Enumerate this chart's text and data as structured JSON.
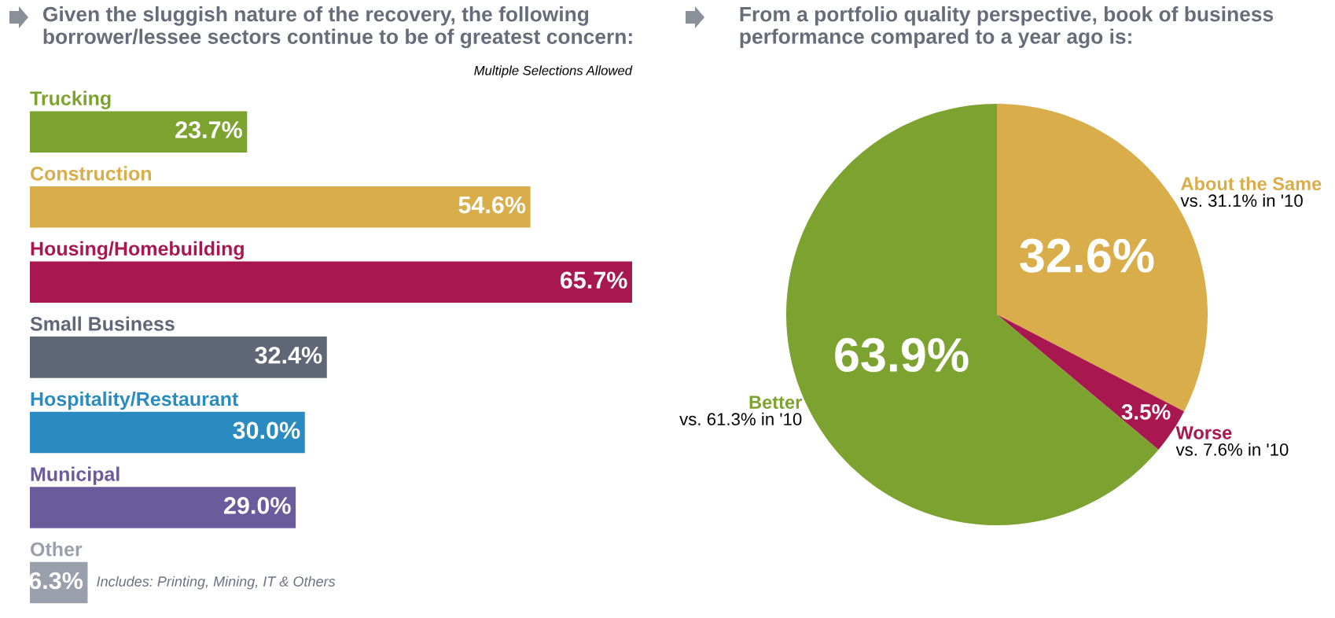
{
  "chart_data": [
    {
      "type": "bar",
      "orientation": "horizontal",
      "title": "Given the sluggish nature of the recovery, the following borrower/lessee sectors continue to be of greatest concern:",
      "categories": [
        "Trucking",
        "Construction",
        "Housing/Homebuilding",
        "Small Business",
        "Hospitality/Restaurant",
        "Municipal",
        "Other"
      ],
      "values": [
        23.7,
        54.6,
        65.7,
        32.4,
        30.0,
        29.0,
        6.3
      ],
      "value_labels": [
        "23.7%",
        "54.6%",
        "65.7%",
        "32.4%",
        "30.0%",
        "29.0%",
        "6.3%"
      ],
      "colors": [
        "#7ca22f",
        "#d8ad4a",
        "#a8174f",
        "#5f6777",
        "#2a8bc0",
        "#6a5b9c",
        "#9aa0ab"
      ],
      "annotations": [
        "Multiple Selections Allowed",
        "Includes: Printing, Mining, IT & Others"
      ]
    },
    {
      "type": "pie",
      "title": "From a portfolio quality perspective, book of business performance compared to a year ago is:",
      "categories": [
        "About the Same",
        "Worse",
        "Better"
      ],
      "values": [
        32.6,
        3.5,
        63.9
      ],
      "value_labels": [
        "32.6%",
        "3.5%",
        "63.9%"
      ],
      "colors": [
        "#d8ad4a",
        "#a8174f",
        "#7ca22f"
      ],
      "annotations": [
        "vs. 31.1% in '10",
        "vs. 7.6% in '10",
        "vs. 61.3% in '10"
      ]
    }
  ]
}
